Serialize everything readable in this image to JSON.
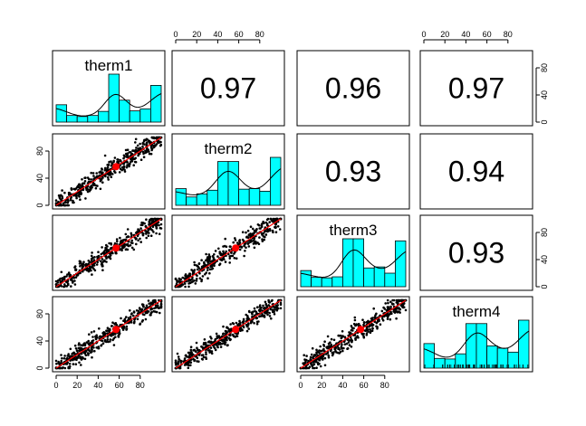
{
  "chart_data": {
    "type": "pairs-panel",
    "variables": [
      "therm1",
      "therm2",
      "therm3",
      "therm4"
    ],
    "correlations": [
      {
        "row": 0,
        "col": 1,
        "value": "0.97"
      },
      {
        "row": 0,
        "col": 2,
        "value": "0.96"
      },
      {
        "row": 0,
        "col": 3,
        "value": "0.97"
      },
      {
        "row": 1,
        "col": 2,
        "value": "0.93"
      },
      {
        "row": 1,
        "col": 3,
        "value": "0.94"
      },
      {
        "row": 2,
        "col": 3,
        "value": "0.93"
      }
    ],
    "axis_range": [
      0,
      100
    ],
    "axis_ticks": [
      0,
      20,
      40,
      60,
      80
    ],
    "axis_tick_labels": [
      "0",
      "20",
      "40",
      "60",
      "80"
    ],
    "side_axis_ticks": [
      0,
      40,
      80
    ],
    "side_axis_tick_labels": [
      "0",
      "40",
      "80"
    ],
    "histogram_bins": [
      0,
      10,
      20,
      30,
      40,
      50,
      60,
      70,
      80,
      90,
      100
    ],
    "histograms": [
      {
        "variable": "therm1",
        "counts": [
          34,
          13,
          11,
          13,
          21,
          94,
          43,
          22,
          26,
          72
        ]
      },
      {
        "variable": "therm2",
        "counts": [
          32,
          16,
          22,
          29,
          84,
          84,
          31,
          32,
          27,
          92
        ]
      },
      {
        "variable": "therm3",
        "counts": [
          31,
          18,
          17,
          19,
          92,
          92,
          36,
          38,
          26,
          88
        ]
      },
      {
        "variable": "therm4",
        "counts": [
          43,
          17,
          16,
          25,
          78,
          78,
          39,
          35,
          28,
          84
        ]
      }
    ],
    "scatter_mean": {
      "x": 57,
      "y": 57
    },
    "colors": {
      "histogram_fill": "#00ffff",
      "points": "#000000",
      "fit_line": "#ff0000",
      "mean_point": "#ff0000",
      "density_line": "#000000"
    }
  }
}
